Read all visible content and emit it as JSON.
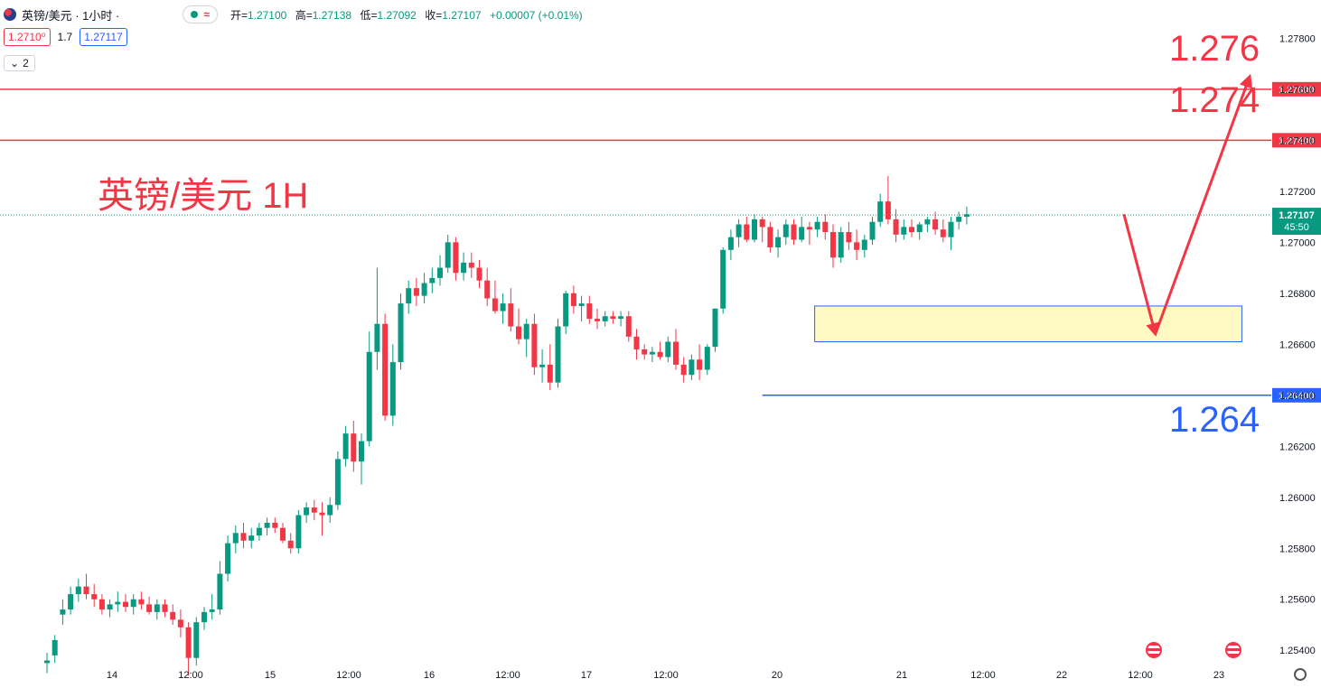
{
  "header": {
    "symbol": "英镑/美元 · 1小时 ·",
    "approx_icon": "≈",
    "open_label": "开=",
    "open": "1.27100",
    "high_label": "高=",
    "high": "1.27138",
    "low_label": "低=",
    "low": "1.27092",
    "close_label": "收=",
    "close": "1.27107",
    "change": "+0.00007 (+0.01%)"
  },
  "quote": {
    "bid": "1.2710⁰",
    "spread": "1.7",
    "ask": "1.27117"
  },
  "indicators": {
    "collapse_label": "2"
  },
  "annotation_title": "英镑/美元 1H",
  "levels": {
    "upper": "1.276",
    "mid": "1.274",
    "lower": "1.264"
  },
  "price_axis_badges": {
    "l1": "1.27600",
    "l2": "1.27400",
    "l3": "1.26400",
    "current": "1.27107",
    "countdown": "45:50"
  },
  "colors": {
    "up": "#089981",
    "down": "#f23645",
    "resistance": "#f23645",
    "support": "#2962ff",
    "zone_fill": "#fff9c4",
    "zone_border": "#2962ff"
  },
  "chart_data": {
    "type": "candlestick",
    "title": "英镑/美元 1H",
    "ylim": [
      1.2533,
      1.2795
    ],
    "y_ticks": [
      "1.25400",
      "1.25600",
      "1.25800",
      "1.26000",
      "1.26200",
      "1.26400",
      "1.26600",
      "1.26800",
      "1.27000",
      "1.27200",
      "1.27400",
      "1.27600",
      "1.27800"
    ],
    "x_ticks": [
      "14",
      "12:00",
      "15",
      "12:00",
      "16",
      "12:00",
      "17",
      "12:00",
      "20",
      "21",
      "12:00",
      "22",
      "12:00",
      "23"
    ],
    "horizontal_lines": [
      {
        "price": 1.276,
        "color": "#f23645"
      },
      {
        "price": 1.274,
        "color": "#f23645"
      },
      {
        "price": 1.264,
        "color": "#2962ff",
        "from_bar": 91
      }
    ],
    "current_price": 1.27107,
    "zone": {
      "from_bar": 98,
      "to_bar": 152,
      "top": 1.2675,
      "bottom": 1.2661
    },
    "path_points": [
      [
        137,
        1.2711
      ],
      [
        141,
        1.2664
      ],
      [
        153,
        1.2765
      ]
    ],
    "ohlc": [
      [
        1.2535,
        1.2539,
        1.2531,
        1.2536
      ],
      [
        1.2538,
        1.2546,
        1.2535,
        1.2544
      ],
      [
        1.2554,
        1.256,
        1.255,
        1.2556
      ],
      [
        1.2556,
        1.2565,
        1.2554,
        1.2562
      ],
      [
        1.2562,
        1.2568,
        1.2559,
        1.2565
      ],
      [
        1.2565,
        1.257,
        1.256,
        1.2562
      ],
      [
        1.2562,
        1.2566,
        1.2557,
        1.256
      ],
      [
        1.256,
        1.2562,
        1.2554,
        1.2556
      ],
      [
        1.2556,
        1.256,
        1.2553,
        1.2558
      ],
      [
        1.2558,
        1.2563,
        1.2555,
        1.2559
      ],
      [
        1.2559,
        1.2562,
        1.2555,
        1.2557
      ],
      [
        1.2557,
        1.2562,
        1.2554,
        1.256
      ],
      [
        1.256,
        1.2563,
        1.2556,
        1.2558
      ],
      [
        1.2558,
        1.2561,
        1.2554,
        1.2555
      ],
      [
        1.2555,
        1.256,
        1.2552,
        1.2558
      ],
      [
        1.2558,
        1.256,
        1.2553,
        1.2555
      ],
      [
        1.2555,
        1.2558,
        1.255,
        1.2552
      ],
      [
        1.2552,
        1.2556,
        1.2545,
        1.2549
      ],
      [
        1.2549,
        1.2551,
        1.253,
        1.2537
      ],
      [
        1.2537,
        1.2553,
        1.2534,
        1.2551
      ],
      [
        1.2551,
        1.2557,
        1.2548,
        1.2555
      ],
      [
        1.2555,
        1.2562,
        1.2552,
        1.2556
      ],
      [
        1.2556,
        1.2575,
        1.2554,
        1.257
      ],
      [
        1.257,
        1.2585,
        1.2567,
        1.2582
      ],
      [
        1.2582,
        1.2589,
        1.2578,
        1.2586
      ],
      [
        1.2586,
        1.259,
        1.258,
        1.2583
      ],
      [
        1.2583,
        1.2588,
        1.258,
        1.2585
      ],
      [
        1.2585,
        1.259,
        1.2583,
        1.2588
      ],
      [
        1.2588,
        1.2592,
        1.2585,
        1.259
      ],
      [
        1.259,
        1.2592,
        1.2586,
        1.2588
      ],
      [
        1.2588,
        1.259,
        1.2582,
        1.2583
      ],
      [
        1.2583,
        1.2586,
        1.2578,
        1.258
      ],
      [
        1.258,
        1.2595,
        1.2578,
        1.2593
      ],
      [
        1.2593,
        1.2598,
        1.259,
        1.2596
      ],
      [
        1.2596,
        1.2599,
        1.2591,
        1.2594
      ],
      [
        1.2594,
        1.2598,
        1.2585,
        1.2593
      ],
      [
        1.2593,
        1.26,
        1.259,
        1.2597
      ],
      [
        1.2597,
        1.2618,
        1.2595,
        1.2615
      ],
      [
        1.2615,
        1.2628,
        1.2612,
        1.2625
      ],
      [
        1.2625,
        1.263,
        1.261,
        1.2614
      ],
      [
        1.2614,
        1.2625,
        1.2605,
        1.2622
      ],
      [
        1.2622,
        1.2665,
        1.262,
        1.2657
      ],
      [
        1.2657,
        1.269,
        1.265,
        1.2668
      ],
      [
        1.2668,
        1.2672,
        1.263,
        1.2632
      ],
      [
        1.2632,
        1.266,
        1.2628,
        1.2653
      ],
      [
        1.2653,
        1.268,
        1.265,
        1.2676
      ],
      [
        1.2676,
        1.2685,
        1.2672,
        1.2682
      ],
      [
        1.2682,
        1.2686,
        1.2675,
        1.2679
      ],
      [
        1.2679,
        1.2688,
        1.2676,
        1.2684
      ],
      [
        1.2684,
        1.269,
        1.268,
        1.2686
      ],
      [
        1.2686,
        1.2695,
        1.2683,
        1.269
      ],
      [
        1.269,
        1.2703,
        1.2688,
        1.27
      ],
      [
        1.27,
        1.2702,
        1.2685,
        1.2688
      ],
      [
        1.2688,
        1.2696,
        1.2685,
        1.2692
      ],
      [
        1.2692,
        1.2696,
        1.2686,
        1.269
      ],
      [
        1.269,
        1.2693,
        1.2682,
        1.2685
      ],
      [
        1.2685,
        1.269,
        1.2675,
        1.2678
      ],
      [
        1.2678,
        1.2685,
        1.2672,
        1.2673
      ],
      [
        1.2673,
        1.268,
        1.2668,
        1.2676
      ],
      [
        1.2676,
        1.2682,
        1.2665,
        1.2667
      ],
      [
        1.2667,
        1.2674,
        1.266,
        1.2662
      ],
      [
        1.2662,
        1.267,
        1.2655,
        1.2668
      ],
      [
        1.2668,
        1.2672,
        1.2648,
        1.2651
      ],
      [
        1.2651,
        1.2658,
        1.2645,
        1.2652
      ],
      [
        1.2652,
        1.266,
        1.2642,
        1.2645
      ],
      [
        1.2645,
        1.267,
        1.2643,
        1.2667
      ],
      [
        1.2667,
        1.2681,
        1.2664,
        1.268
      ],
      [
        1.268,
        1.2683,
        1.2672,
        1.2675
      ],
      [
        1.2675,
        1.2679,
        1.2669,
        1.2676
      ],
      [
        1.2676,
        1.2679,
        1.2668,
        1.267
      ],
      [
        1.267,
        1.2674,
        1.2666,
        1.2669
      ],
      [
        1.2669,
        1.2673,
        1.2667,
        1.2671
      ],
      [
        1.2671,
        1.2673,
        1.2668,
        1.267
      ],
      [
        1.267,
        1.2673,
        1.2667,
        1.2671
      ],
      [
        1.2671,
        1.2673,
        1.2661,
        1.2663
      ],
      [
        1.2663,
        1.2666,
        1.2654,
        1.2658
      ],
      [
        1.2658,
        1.266,
        1.2654,
        1.2656
      ],
      [
        1.2656,
        1.2659,
        1.2653,
        1.2657
      ],
      [
        1.2657,
        1.2661,
        1.2654,
        1.2655
      ],
      [
        1.2655,
        1.2663,
        1.2653,
        1.2661
      ],
      [
        1.2661,
        1.2666,
        1.265,
        1.2652
      ],
      [
        1.2652,
        1.2655,
        1.2645,
        1.2648
      ],
      [
        1.2648,
        1.2656,
        1.2646,
        1.2654
      ],
      [
        1.2654,
        1.266,
        1.2646,
        1.265
      ],
      [
        1.265,
        1.266,
        1.2648,
        1.2659
      ],
      [
        1.2659,
        1.2674,
        1.2657,
        1.2674
      ],
      [
        1.2674,
        1.2698,
        1.2672,
        1.2697
      ],
      [
        1.2697,
        1.2705,
        1.2693,
        1.2702
      ],
      [
        1.2702,
        1.2709,
        1.2698,
        1.2707
      ],
      [
        1.2707,
        1.271,
        1.27,
        1.2701
      ],
      [
        1.2701,
        1.2711,
        1.27,
        1.2709
      ],
      [
        1.2709,
        1.271,
        1.27,
        1.2706
      ],
      [
        1.2706,
        1.2708,
        1.2696,
        1.2698
      ],
      [
        1.2698,
        1.2705,
        1.2694,
        1.2702
      ],
      [
        1.2702,
        1.2709,
        1.2699,
        1.2707
      ],
      [
        1.2707,
        1.2709,
        1.2699,
        1.2701
      ],
      [
        1.2701,
        1.271,
        1.27,
        1.2706
      ],
      [
        1.2706,
        1.2708,
        1.2699,
        1.2705
      ],
      [
        1.2705,
        1.271,
        1.2702,
        1.2708
      ],
      [
        1.2708,
        1.2711,
        1.2701,
        1.2704
      ],
      [
        1.2704,
        1.2707,
        1.269,
        1.2694
      ],
      [
        1.2694,
        1.2706,
        1.2692,
        1.2704
      ],
      [
        1.2704,
        1.2708,
        1.2697,
        1.27
      ],
      [
        1.27,
        1.2705,
        1.2693,
        1.2697
      ],
      [
        1.2697,
        1.2703,
        1.2694,
        1.2701
      ],
      [
        1.2701,
        1.271,
        1.2699,
        1.2708
      ],
      [
        1.2708,
        1.2719,
        1.2706,
        1.2716
      ],
      [
        1.2716,
        1.2726,
        1.2707,
        1.2709
      ],
      [
        1.2709,
        1.2713,
        1.27,
        1.2703
      ],
      [
        1.2703,
        1.2709,
        1.2701,
        1.2706
      ],
      [
        1.2706,
        1.2709,
        1.2702,
        1.2704
      ],
      [
        1.2704,
        1.2708,
        1.2701,
        1.2707
      ],
      [
        1.2707,
        1.271,
        1.2704,
        1.2709
      ],
      [
        1.2709,
        1.2712,
        1.2703,
        1.2705
      ],
      [
        1.2705,
        1.2709,
        1.27,
        1.2702
      ],
      [
        1.2702,
        1.271,
        1.2697,
        1.2708
      ],
      [
        1.2708,
        1.2712,
        1.2705,
        1.271
      ],
      [
        1.271,
        1.2714,
        1.2707,
        1.2711
      ]
    ]
  }
}
